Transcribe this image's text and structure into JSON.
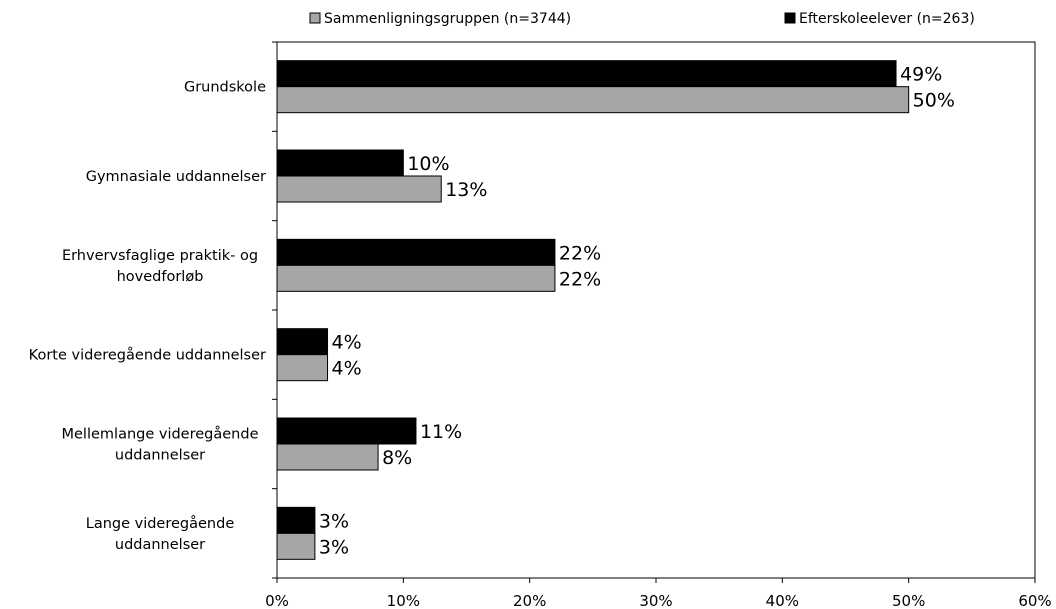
{
  "chart_data": {
    "type": "bar",
    "orientation": "horizontal",
    "categories": [
      [
        "Grundskole"
      ],
      [
        "Gymnasiale uddannelser"
      ],
      [
        "Erhvervsfaglige praktik- og",
        "hovedforløb"
      ],
      [
        "Korte videregående uddannelser"
      ],
      [
        "Mellemlange videregående",
        "uddannelser"
      ],
      [
        "Lange videregående",
        "uddannelser"
      ]
    ],
    "series": [
      {
        "name": "Efterskoleelever (n=263)",
        "color": "#000000",
        "values": [
          49,
          10,
          22,
          4,
          11,
          3
        ],
        "labels": [
          "49%",
          "10%",
          "22%",
          "4%",
          "11%",
          "3%"
        ]
      },
      {
        "name": "Sammenligningsgruppen (n=3744)",
        "color": "#a6a6a6",
        "values": [
          50,
          13,
          22,
          4,
          8,
          3
        ],
        "labels": [
          "50%",
          "13%",
          "22%",
          "4%",
          "8%",
          "3%"
        ]
      }
    ],
    "xlim": [
      0,
      60
    ],
    "xticks": [
      0,
      10,
      20,
      30,
      40,
      50,
      60
    ],
    "xtick_labels": [
      "0%",
      "10%",
      "20%",
      "30%",
      "40%",
      "50%",
      "60%"
    ],
    "legend_position": "top",
    "legend_order": [
      "Sammenligningsgruppen (n=3744)",
      "Efterskoleelever (n=263)"
    ],
    "grid": false
  }
}
